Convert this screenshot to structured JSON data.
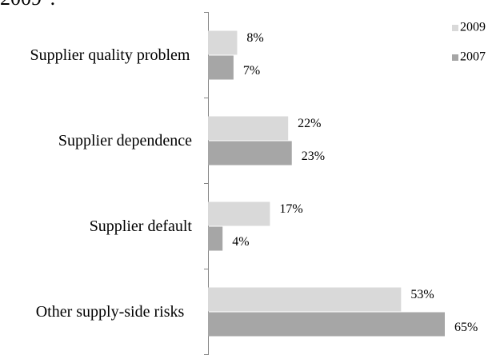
{
  "chart_data": {
    "type": "hbar",
    "title": "2009\".",
    "categories": [
      "Supplier quality problem",
      "Supplier dependence",
      "Supplier default",
      "Other supply-side risks"
    ],
    "series": [
      {
        "name": "2009",
        "color": "#d9d9d9",
        "values": [
          8,
          22,
          17,
          53
        ],
        "value_labels": [
          "8%",
          "22%",
          "17%",
          "53%"
        ]
      },
      {
        "name": "2007",
        "color": "#a6a6a6",
        "values": [
          7,
          23,
          4,
          65
        ],
        "value_labels": [
          "7%",
          "23%",
          "4%",
          "65%"
        ]
      }
    ],
    "xlim": [
      0,
      65
    ],
    "legend": "top-right"
  }
}
